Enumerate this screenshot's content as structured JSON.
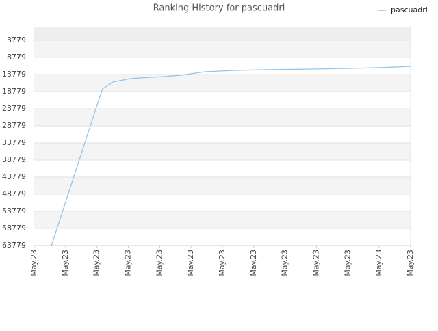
{
  "chart_data": {
    "type": "line",
    "title": "Ranking History for pascuadri",
    "xlim": [
      0,
      12
    ],
    "xticks": [
      {
        "value": 0,
        "label": "May.23"
      },
      {
        "value": 1,
        "label": "May.23"
      },
      {
        "value": 2,
        "label": "May.23"
      },
      {
        "value": 3,
        "label": "May.23"
      },
      {
        "value": 4,
        "label": "May.23"
      },
      {
        "value": 5,
        "label": "May.23"
      },
      {
        "value": 6,
        "label": "May.23"
      },
      {
        "value": 7,
        "label": "May.23"
      },
      {
        "value": 8,
        "label": "May.23"
      },
      {
        "value": 9,
        "label": "May.23"
      },
      {
        "value": 10,
        "label": "May.23"
      },
      {
        "value": 11,
        "label": "May.23"
      },
      {
        "value": 12,
        "label": "May.23"
      }
    ],
    "ylim": [
      63779,
      -21
    ],
    "yticks": [
      3779,
      8779,
      13779,
      18779,
      23779,
      28779,
      33779,
      38779,
      43779,
      48779,
      53779,
      58779,
      63779
    ],
    "grid": true,
    "legend": "top-right",
    "series": [
      {
        "name": "pascuadri",
        "color": "#8ec6f0",
        "x": [
          0.55,
          2.03,
          2.18,
          2.51,
          3.05,
          3.38,
          3.71,
          4.15,
          4.69,
          5.13,
          5.45,
          5.89,
          6.44,
          7.31,
          8.84,
          10.04,
          10.91,
          11.56,
          12
        ],
        "values": [
          63779,
          21979,
          17979,
          15979,
          14979,
          14779,
          14579,
          14379,
          13979,
          13379,
          12979,
          12779,
          12579,
          12379,
          12179,
          11979,
          11779,
          11579,
          11379
        ]
      }
    ]
  }
}
